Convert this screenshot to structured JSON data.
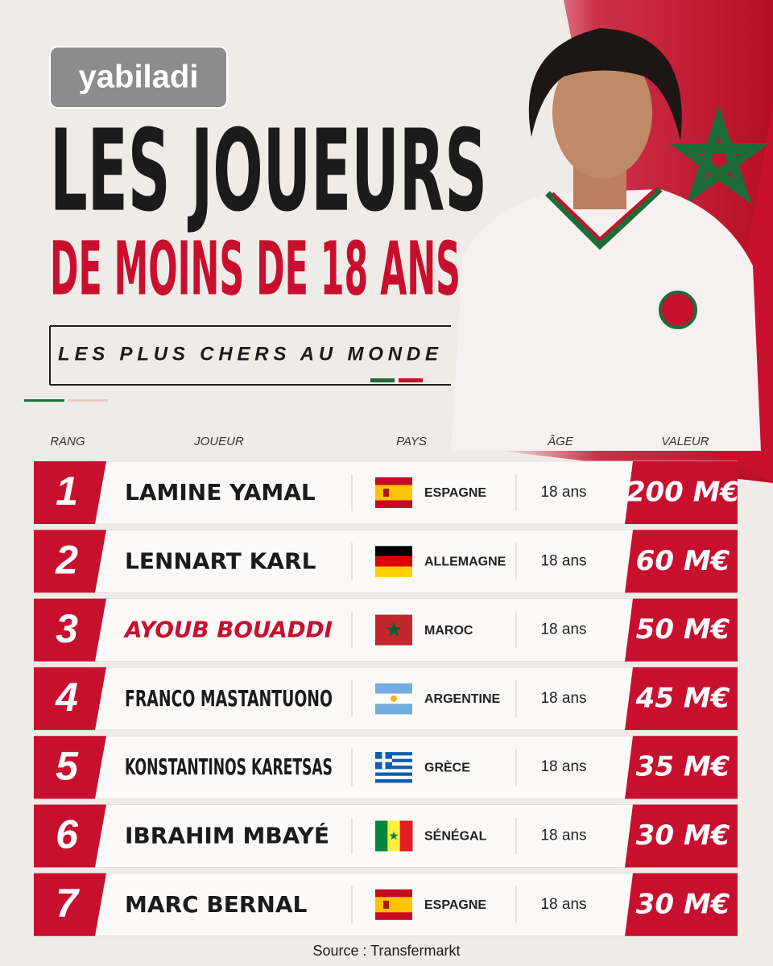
{
  "logo": "yabiladi",
  "header": {
    "title": "LES JOUEURS",
    "title_line2": "DE MOINS DE 18 ANS",
    "subtitle": "LES PLUS CHERS AU MONDE"
  },
  "table": {
    "columns": [
      "RANG",
      "JOUEUR",
      "PAYS",
      "ÂGE",
      "VALEUR"
    ],
    "rows": [
      [
        "1",
        "LAMINE YAMAL",
        "ESPAGNE",
        "18 ans",
        "200 M€"
      ],
      [
        "2",
        "LENNART KARL",
        "ALLEMAGNE",
        "18 ans",
        "60 M€"
      ],
      [
        "3",
        "AYOUB BOUADDI",
        "MAROC",
        "18 ans",
        "50 M€"
      ],
      [
        "4",
        "FRANCO MASTANTUONO",
        "ARGENTINE",
        "18 ans",
        "45 M€"
      ],
      [
        "5",
        "KONSTANTINOS KARETSAS",
        "GRÈCE",
        "18 ans",
        "35 M€"
      ],
      [
        "6",
        "IBRAHIM MBAYÉ",
        "SÉNÉGAL",
        "18 ans",
        "30 M€"
      ],
      [
        "7",
        "MARC BERNAL",
        "ESPAGNE",
        "18 ans",
        "30 M€"
      ]
    ]
  },
  "source": "Source : Transfermarkt"
}
